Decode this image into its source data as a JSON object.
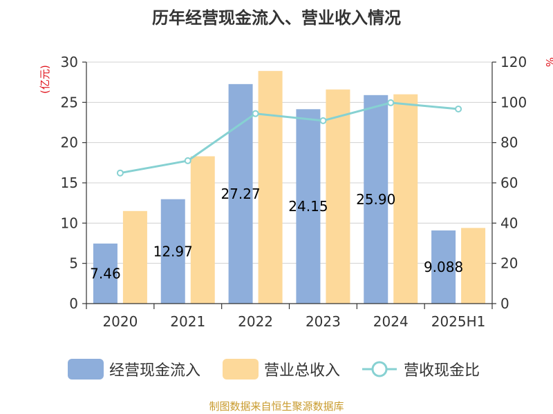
{
  "chart_data": {
    "type": "bar",
    "title": "历年经营现金流入、营业收入情况",
    "ylabel_left": "(亿元)",
    "ylabel_right": "%",
    "categories": [
      "2020",
      "2021",
      "2022",
      "2023",
      "2024",
      "2025H1"
    ],
    "y_left_range": [
      0,
      30
    ],
    "y_right_range": [
      0,
      120
    ],
    "y_left_ticks": [
      0,
      5,
      10,
      15,
      20,
      25,
      30
    ],
    "y_right_ticks": [
      0,
      20,
      40,
      60,
      80,
      100,
      120
    ],
    "grid": true,
    "legend_position": "bottom",
    "series": [
      {
        "name": "经营现金流入",
        "kind": "bar",
        "axis": "left",
        "color": "#8eaedb",
        "values": [
          7.46,
          12.97,
          27.27,
          24.15,
          25.9,
          9.088
        ],
        "labels": [
          "7.46",
          "12.97",
          "27.27",
          "24.15",
          "25.90",
          "9.088"
        ]
      },
      {
        "name": "营业总收入",
        "kind": "bar",
        "axis": "left",
        "color": "#fdd99a",
        "values": [
          11.5,
          18.3,
          28.9,
          26.6,
          26.0,
          9.4
        ]
      },
      {
        "name": "营收现金比",
        "kind": "line",
        "axis": "right",
        "color": "#86d1d2",
        "values": [
          64.9,
          71.0,
          94.4,
          90.9,
          99.8,
          96.7
        ]
      }
    ]
  },
  "footer": "制图数据来自恒生聚源数据库"
}
